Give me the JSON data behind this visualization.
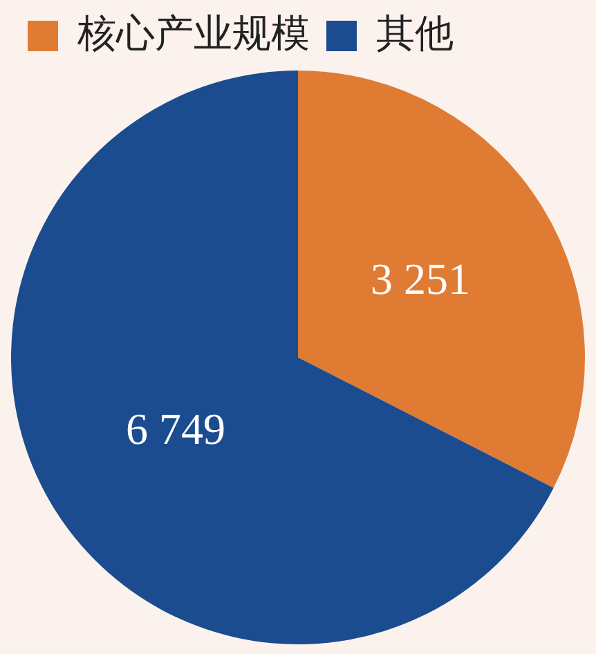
{
  "chart_data": {
    "type": "pie",
    "categories": [
      "核心产业规模",
      "其他"
    ],
    "values": [
      3251,
      6749
    ],
    "colors": [
      "#e07b33",
      "#1b4c8f"
    ],
    "value_labels": [
      "3 251",
      "6 749"
    ],
    "legend": "top"
  }
}
